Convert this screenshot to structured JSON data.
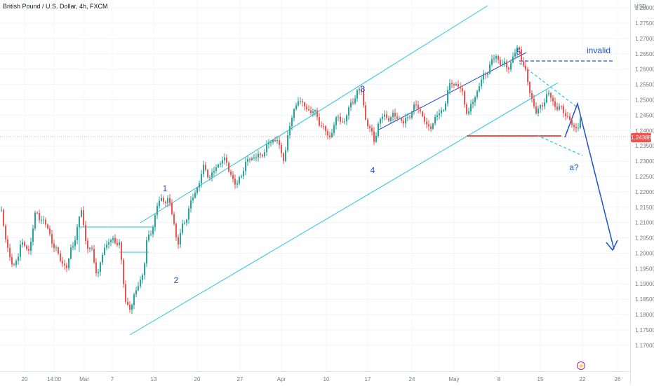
{
  "header": {
    "symbol": "British Pound / U.S. Dollar, 4h, FXCM"
  },
  "price_axis": {
    "unit": "USD",
    "current_price": "1.24388"
  },
  "colors": {
    "up": "#26a69a",
    "down": "#ef5350",
    "channel": "#26c6da",
    "annotation": "#1e4fd0",
    "support": "#ef5350",
    "current_price_line": "#ef9a9a"
  },
  "icons": {
    "event_marker": "lightning-icon"
  },
  "chart_data": {
    "type": "candlestick",
    "title": "British Pound / U.S. Dollar, 4h, FXCM",
    "ylim": [
      1.1675,
      1.288
    ],
    "grid": true,
    "y_ticks": [
      "1.28000",
      "1.27500",
      "1.27000",
      "1.26500",
      "1.26000",
      "1.25500",
      "1.25000",
      "1.24500",
      "1.24000",
      "1.23500",
      "1.23000",
      "1.22500",
      "1.22000",
      "1.21500",
      "1.21000",
      "1.20500",
      "1.20000",
      "1.19500",
      "1.19000",
      "1.18500",
      "1.18000",
      "1.17500",
      "1.17000"
    ],
    "x_ticks": [
      "20",
      "14:00",
      "Mar",
      "7",
      "13",
      "20",
      "27",
      "Apr",
      "10",
      "17",
      "24",
      "May",
      "8",
      "15",
      "22",
      "26"
    ],
    "path": [
      [
        0,
        1.214
      ],
      [
        8,
        1.204
      ],
      [
        18,
        1.194
      ],
      [
        28,
        1.203
      ],
      [
        40,
        1.201
      ],
      [
        50,
        1.213
      ],
      [
        60,
        1.211
      ],
      [
        70,
        1.206
      ],
      [
        82,
        1.199
      ],
      [
        95,
        1.195
      ],
      [
        100,
        1.201
      ],
      [
        108,
        1.207
      ],
      [
        115,
        1.214
      ],
      [
        122,
        1.203
      ],
      [
        130,
        1.2
      ],
      [
        138,
        1.193
      ],
      [
        146,
        1.2
      ],
      [
        154,
        1.205
      ],
      [
        162,
        1.203
      ],
      [
        170,
        1.204
      ],
      [
        174,
        1.192
      ],
      [
        178,
        1.183
      ],
      [
        186,
        1.183
      ],
      [
        194,
        1.188
      ],
      [
        204,
        1.195
      ],
      [
        208,
        1.203
      ],
      [
        212,
        1.206
      ],
      [
        218,
        1.21
      ],
      [
        224,
        1.216
      ],
      [
        230,
        1.218
      ],
      [
        238,
        1.217
      ],
      [
        246,
        1.212
      ],
      [
        252,
        1.202
      ],
      [
        258,
        1.208
      ],
      [
        266,
        1.213
      ],
      [
        274,
        1.218
      ],
      [
        282,
        1.223
      ],
      [
        290,
        1.228
      ],
      [
        298,
        1.225
      ],
      [
        306,
        1.227
      ],
      [
        314,
        1.231
      ],
      [
        322,
        1.229
      ],
      [
        330,
        1.225
      ],
      [
        336,
        1.221
      ],
      [
        342,
        1.226
      ],
      [
        352,
        1.23
      ],
      [
        362,
        1.232
      ],
      [
        370,
        1.231
      ],
      [
        378,
        1.235
      ],
      [
        386,
        1.236
      ],
      [
        394,
        1.238
      ],
      [
        402,
        1.229
      ],
      [
        410,
        1.24
      ],
      [
        418,
        1.246
      ],
      [
        424,
        1.251
      ],
      [
        430,
        1.248
      ],
      [
        438,
        1.247
      ],
      [
        446,
        1.246
      ],
      [
        454,
        1.243
      ],
      [
        462,
        1.24
      ],
      [
        468,
        1.237
      ],
      [
        474,
        1.242
      ],
      [
        482,
        1.244
      ],
      [
        490,
        1.243
      ],
      [
        498,
        1.248
      ],
      [
        506,
        1.252
      ],
      [
        514,
        1.253
      ],
      [
        520,
        1.244
      ],
      [
        526,
        1.24
      ],
      [
        532,
        1.237
      ],
      [
        538,
        1.242
      ],
      [
        546,
        1.245
      ],
      [
        556,
        1.244
      ],
      [
        566,
        1.245
      ],
      [
        574,
        1.242
      ],
      [
        584,
        1.246
      ],
      [
        592,
        1.248
      ],
      [
        600,
        1.246
      ],
      [
        608,
        1.24
      ],
      [
        616,
        1.243
      ],
      [
        624,
        1.245
      ],
      [
        632,
        1.248
      ],
      [
        642,
        1.256
      ],
      [
        650,
        1.255
      ],
      [
        658,
        1.252
      ],
      [
        666,
        1.245
      ],
      [
        674,
        1.25
      ],
      [
        682,
        1.255
      ],
      [
        690,
        1.258
      ],
      [
        698,
        1.262
      ],
      [
        706,
        1.264
      ],
      [
        714,
        1.262
      ],
      [
        722,
        1.26
      ],
      [
        730,
        1.264
      ],
      [
        738,
        1.267
      ],
      [
        746,
        1.261
      ],
      [
        752,
        1.254
      ],
      [
        758,
        1.25
      ],
      [
        764,
        1.245
      ],
      [
        772,
        1.249
      ],
      [
        780,
        1.252
      ],
      [
        788,
        1.249
      ],
      [
        796,
        1.247
      ],
      [
        804,
        1.246
      ],
      [
        810,
        1.244
      ],
      [
        816,
        1.24
      ],
      [
        822,
        1.242
      ],
      [
        828,
        1.244
      ]
    ]
  }
}
